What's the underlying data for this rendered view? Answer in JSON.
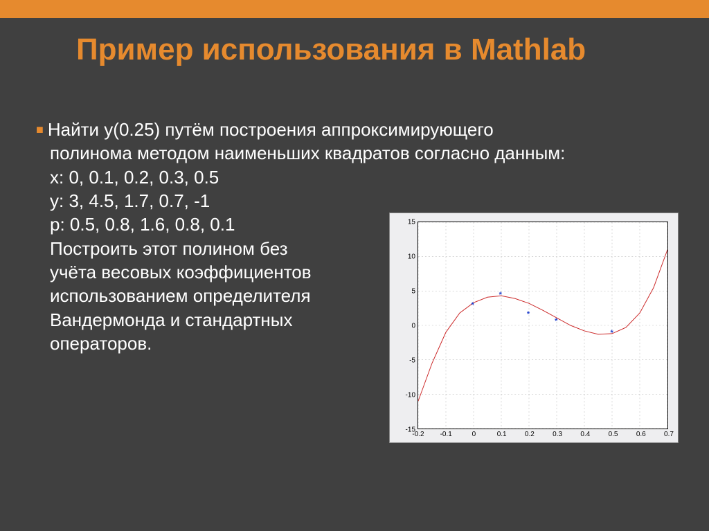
{
  "title": "Пример  использования в Mathlab",
  "body": {
    "line1": "Найти y(0.25) путём построения аппроксимирующего",
    "line2": "полинома методом наименьших квадратов согласно данным:",
    "line3": "x: 0, 0.1, 0.2, 0.3, 0.5",
    "line4": "y: 3, 4.5, 1.7, 0.7, -1",
    "line5": "p: 0.5, 0.8, 1.6, 0.8, 0.1",
    "line6": "Построить этот полином без",
    "line7": "учёта весовых коэффициентов",
    "line8": "использованием определителя",
    "line9": "Вандермонда и стандартных",
    "line10": "операторов."
  },
  "chart": {
    "type": "line+scatter",
    "background_color": "#ffffff",
    "panel_color": "#eeeef0",
    "grid_color": "#c0c0c0",
    "axis_color": "#000000",
    "line_color": "#cc2a2a",
    "marker_color": "#2040cc",
    "marker_style": "*",
    "xlim": [
      -0.2,
      0.7
    ],
    "ylim": [
      -15,
      15
    ],
    "xticks": [
      -0.2,
      -0.1,
      0,
      0.1,
      0.2,
      0.3,
      0.4,
      0.5,
      0.6,
      0.7
    ],
    "yticks": [
      -15,
      -10,
      -5,
      0,
      5,
      10,
      15
    ],
    "scatter": {
      "x": [
        0,
        0.1,
        0.2,
        0.3,
        0.5
      ],
      "y": [
        3,
        4.5,
        1.7,
        0.7,
        -1
      ]
    },
    "curve": {
      "x": [
        -0.2,
        -0.15,
        -0.1,
        -0.05,
        0,
        0.05,
        0.1,
        0.15,
        0.2,
        0.25,
        0.3,
        0.35,
        0.4,
        0.45,
        0.5,
        0.55,
        0.6,
        0.65,
        0.7
      ],
      "y": [
        -11,
        -5.5,
        -1,
        1.8,
        3.3,
        4.1,
        4.3,
        3.9,
        3.2,
        2.2,
        1.1,
        0.0,
        -0.8,
        -1.3,
        -1.2,
        -0.3,
        1.8,
        5.5,
        11
      ]
    },
    "tick_fontsize": 10,
    "line_width": 1,
    "grid_dash": "2,3"
  },
  "colors": {
    "accent": "#e68a2e",
    "bg": "#404040",
    "text": "#ffffff"
  }
}
